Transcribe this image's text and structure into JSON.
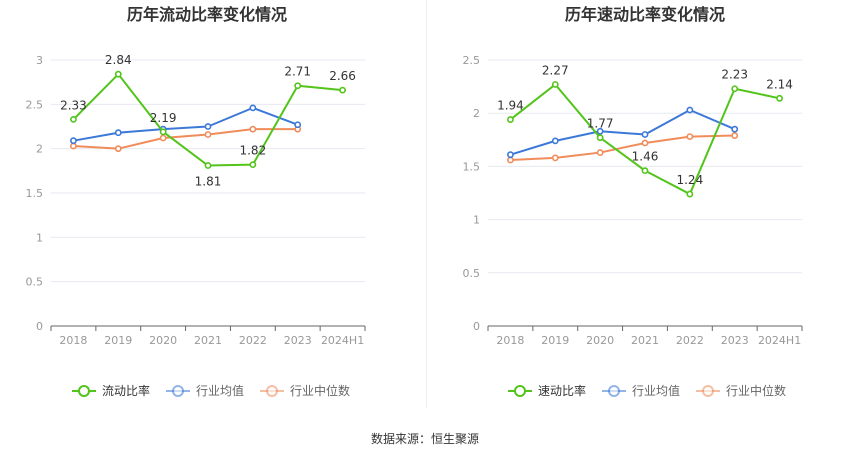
{
  "source": "数据来源：恒生聚源",
  "colors": {
    "green": "#52c41a",
    "blue": "#3c78d8",
    "orange": "#f08c5a",
    "grid": "#e6e9f0",
    "axis": "#666666",
    "tick_text": "#999999",
    "title_text": "#333333",
    "label_text": "#333333"
  },
  "chart_data": [
    {
      "type": "line",
      "title": "历年流动比率变化情况",
      "categories": [
        "2018",
        "2019",
        "2020",
        "2021",
        "2022",
        "2023",
        "2024H1"
      ],
      "ylim": [
        0,
        3
      ],
      "yticks": [
        0,
        0.5,
        1,
        1.5,
        2,
        2.5,
        3
      ],
      "ytick_labels": [
        "0",
        "0.5",
        "1",
        "1.5",
        "2",
        "2.5",
        "3"
      ],
      "series": [
        {
          "name": "流动比率",
          "color": "#52c41a",
          "values": [
            2.33,
            2.84,
            2.19,
            1.81,
            1.82,
            2.71,
            2.66
          ],
          "labels": [
            "2.33",
            "2.84",
            "2.19",
            "1.81",
            "1.82",
            "2.71",
            "2.66"
          ]
        },
        {
          "name": "行业均值",
          "color": "#3c78d8",
          "values": [
            2.09,
            2.18,
            2.22,
            2.25,
            2.46,
            2.27,
            null
          ]
        },
        {
          "name": "行业中位数",
          "color": "#f08c5a",
          "values": [
            2.03,
            2.0,
            2.12,
            2.16,
            2.22,
            2.22,
            null
          ]
        }
      ],
      "label_positions": [
        "above",
        "above",
        "above",
        "below",
        "above",
        "above",
        "above"
      ]
    },
    {
      "type": "line",
      "title": "历年速动比率变化情况",
      "categories": [
        "2018",
        "2019",
        "2020",
        "2021",
        "2022",
        "2023",
        "2024H1"
      ],
      "ylim": [
        0,
        2.5
      ],
      "yticks": [
        0,
        0.5,
        1,
        1.5,
        2,
        2.5
      ],
      "ytick_labels": [
        "0",
        "0.5",
        "1",
        "1.5",
        "2",
        "2.5"
      ],
      "series": [
        {
          "name": "速动比率",
          "color": "#52c41a",
          "values": [
            1.94,
            2.27,
            1.77,
            1.46,
            1.24,
            2.23,
            2.14
          ],
          "labels": [
            "1.94",
            "2.27",
            "1.77",
            "1.46",
            "1.24",
            "2.23",
            "2.14"
          ]
        },
        {
          "name": "行业均值",
          "color": "#3c78d8",
          "values": [
            1.61,
            1.74,
            1.83,
            1.8,
            2.03,
            1.85,
            null
          ]
        },
        {
          "name": "行业中位数",
          "color": "#f08c5a",
          "values": [
            1.56,
            1.58,
            1.63,
            1.72,
            1.78,
            1.79,
            null
          ]
        }
      ],
      "label_positions": [
        "above",
        "above",
        "above",
        "above",
        "above",
        "above",
        "above"
      ]
    }
  ]
}
